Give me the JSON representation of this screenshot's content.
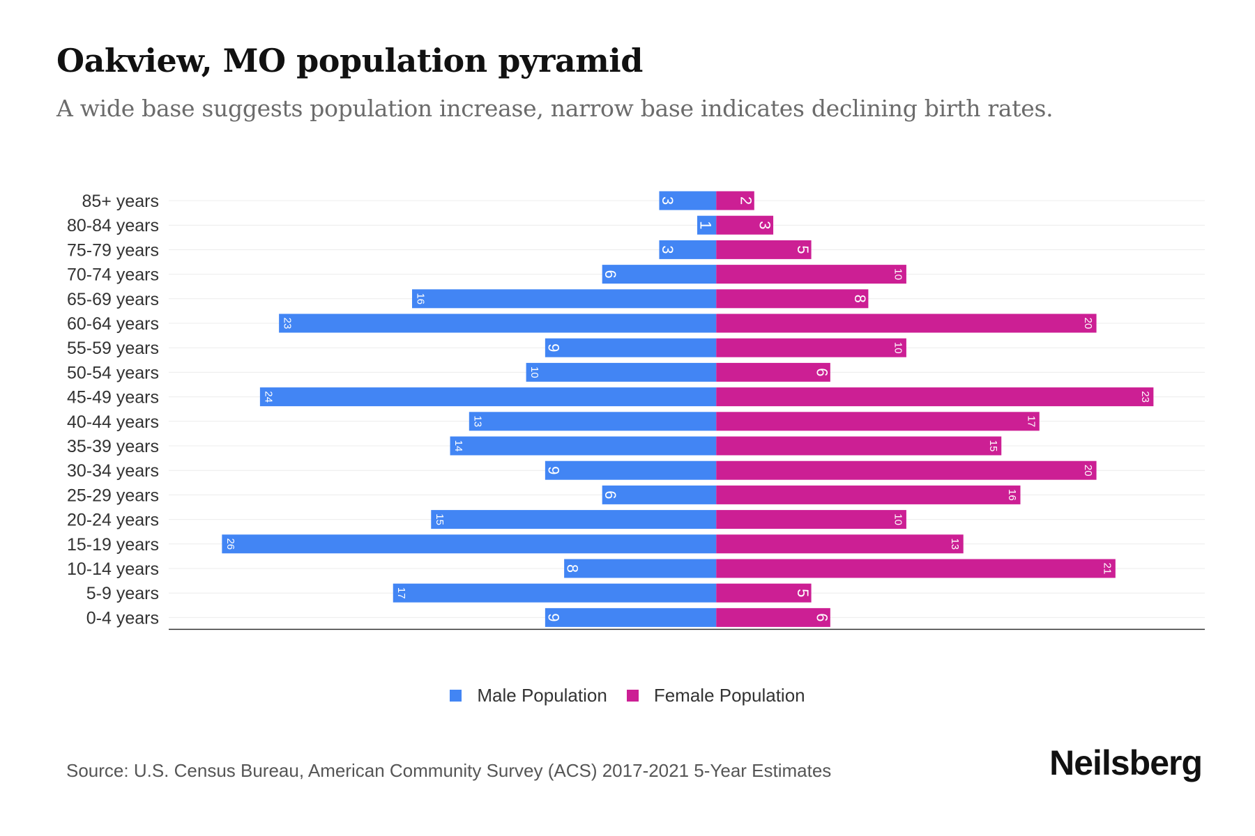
{
  "header": {
    "title": "Oakview, MO population pyramid",
    "subtitle": "A wide base suggests population increase, narrow base indicates declining birth rates."
  },
  "footer": {
    "source": "Source: U.S. Census Bureau, American Community Survey (ACS) 2017-2021 5-Year Estimates",
    "brand": "Neilsberg"
  },
  "legend": {
    "male_label": "Male Population",
    "female_label": "Female Population"
  },
  "colors": {
    "male": "#4285f4",
    "female": "#cc1f94",
    "grid": "#ececec",
    "axis": "#333333"
  },
  "chart_data": {
    "type": "bar",
    "orientation": "horizontal-pyramid",
    "title": "Oakview, MO population pyramid",
    "categories": [
      "85+ years",
      "80-84 years",
      "75-79 years",
      "70-74 years",
      "65-69 years",
      "60-64 years",
      "55-59 years",
      "50-54 years",
      "45-49 years",
      "40-44 years",
      "35-39 years",
      "30-34 years",
      "25-29 years",
      "20-24 years",
      "15-19 years",
      "10-14 years",
      "5-9 years",
      "0-4 years"
    ],
    "series": [
      {
        "name": "Male Population",
        "values": [
          3,
          1,
          3,
          6,
          16,
          23,
          9,
          10,
          24,
          13,
          14,
          9,
          6,
          15,
          26,
          8,
          17,
          9
        ]
      },
      {
        "name": "Female Population",
        "values": [
          2,
          3,
          5,
          10,
          8,
          20,
          10,
          6,
          23,
          17,
          15,
          20,
          16,
          10,
          13,
          21,
          5,
          6
        ]
      }
    ],
    "xlim": [
      -28.8,
      25.7
    ],
    "grid": true,
    "legend_position": "bottom-center"
  }
}
